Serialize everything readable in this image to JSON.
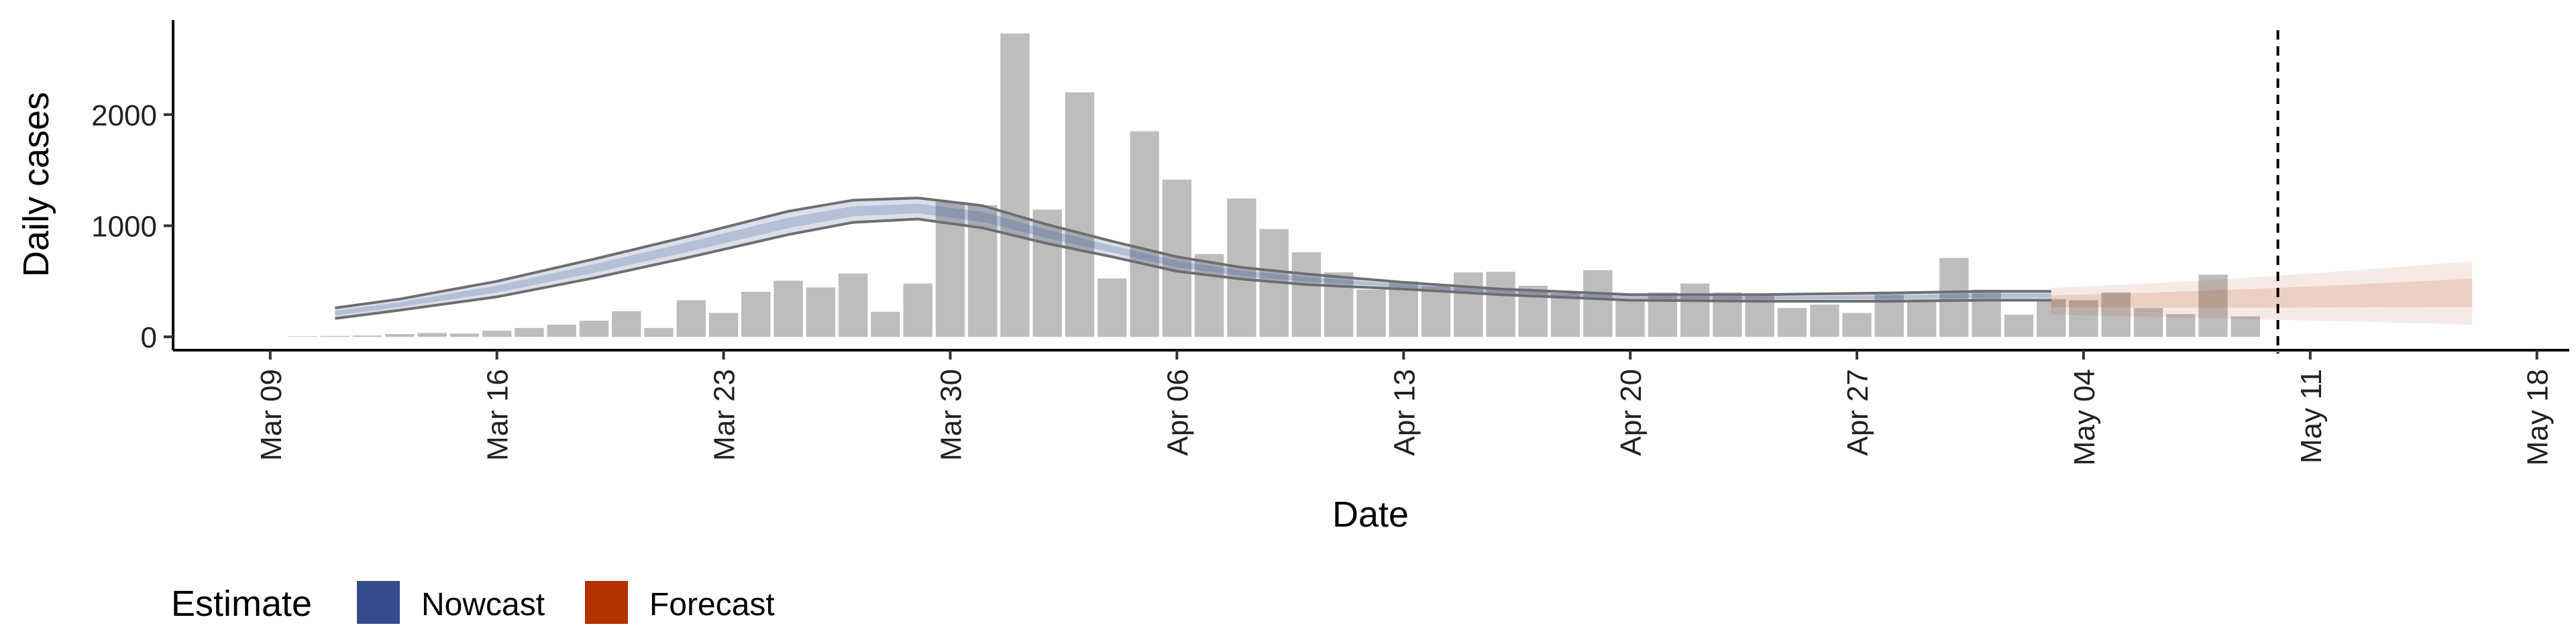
{
  "chart_data": {
    "type": "bar",
    "xlabel": "Date",
    "ylabel": "Daily cases",
    "x_tick_labels": [
      "Mar 09",
      "Mar 16",
      "Mar 23",
      "Mar 30",
      "Apr 06",
      "Apr 13",
      "Apr 20",
      "Apr 27",
      "May 04",
      "May 11",
      "May 18"
    ],
    "x_tick_dates": [
      "2020-03-09",
      "2020-03-16",
      "2020-03-23",
      "2020-03-30",
      "2020-04-06",
      "2020-04-13",
      "2020-04-20",
      "2020-04-27",
      "2020-05-04",
      "2020-05-11",
      "2020-05-18"
    ],
    "xlim": [
      "2020-03-06",
      "2020-05-19"
    ],
    "y_ticks": [
      0,
      1000,
      2000
    ],
    "ylim": [
      -120,
      2850
    ],
    "grid": false,
    "bars": {
      "color": "#bdbdbd",
      "dates": [
        "2020-03-10",
        "2020-03-11",
        "2020-03-12",
        "2020-03-13",
        "2020-03-14",
        "2020-03-15",
        "2020-03-16",
        "2020-03-17",
        "2020-03-18",
        "2020-03-19",
        "2020-03-20",
        "2020-03-21",
        "2020-03-22",
        "2020-03-23",
        "2020-03-24",
        "2020-03-25",
        "2020-03-26",
        "2020-03-27",
        "2020-03-28",
        "2020-03-29",
        "2020-03-30",
        "2020-03-31",
        "2020-04-01",
        "2020-04-02",
        "2020-04-03",
        "2020-04-04",
        "2020-04-05",
        "2020-04-06",
        "2020-04-07",
        "2020-04-08",
        "2020-04-09",
        "2020-04-10",
        "2020-04-11",
        "2020-04-12",
        "2020-04-13",
        "2020-04-14",
        "2020-04-15",
        "2020-04-16",
        "2020-04-17",
        "2020-04-18",
        "2020-04-19",
        "2020-04-20",
        "2020-04-21",
        "2020-04-22",
        "2020-04-23",
        "2020-04-24",
        "2020-04-25",
        "2020-04-26",
        "2020-04-27",
        "2020-04-28",
        "2020-04-29",
        "2020-04-30",
        "2020-05-01",
        "2020-05-02",
        "2020-05-03",
        "2020-05-04",
        "2020-05-05",
        "2020-05-06",
        "2020-05-07",
        "2020-05-08",
        "2020-05-09",
        "2020-05-10"
      ],
      "values": [
        5,
        8,
        12,
        25,
        35,
        30,
        55,
        80,
        110,
        145,
        230,
        80,
        330,
        215,
        405,
        505,
        445,
        570,
        225,
        480,
        1215,
        1185,
        2730,
        1145,
        2200,
        525,
        1850,
        1415,
        745,
        1245,
        970,
        760,
        580,
        425,
        500,
        455,
        580,
        585,
        460,
        390,
        600,
        330,
        400,
        480,
        400,
        370,
        260,
        290,
        215,
        380,
        335,
        710,
        425,
        200,
        340,
        330,
        400,
        260,
        205,
        560,
        185,
        0
      ]
    },
    "series": [
      {
        "name": "Nowcast",
        "type": "ribbon",
        "color": "#334d8c",
        "x": [
          "2020-03-11",
          "2020-03-13",
          "2020-03-16",
          "2020-03-19",
          "2020-03-22",
          "2020-03-25",
          "2020-03-27",
          "2020-03-29",
          "2020-03-31",
          "2020-04-02",
          "2020-04-04",
          "2020-04-06",
          "2020-04-08",
          "2020-04-10",
          "2020-04-13",
          "2020-04-16",
          "2020-04-20",
          "2020-04-24",
          "2020-04-28",
          "2020-05-01",
          "2020-05-03"
        ],
        "lower": [
          165,
          240,
          360,
          530,
          720,
          920,
          1030,
          1060,
          980,
          840,
          720,
          590,
          520,
          470,
          430,
          380,
          330,
          320,
          320,
          330,
          330
        ],
        "median": [
          210,
          290,
          430,
          610,
          820,
          1030,
          1130,
          1160,
          1080,
          920,
          790,
          655,
          575,
          520,
          460,
          405,
          360,
          350,
          355,
          365,
          365
        ],
        "upper": [
          260,
          340,
          500,
          700,
          910,
          1130,
          1230,
          1250,
          1180,
          1010,
          860,
          720,
          625,
          565,
          490,
          430,
          380,
          380,
          395,
          410,
          410
        ]
      },
      {
        "name": "Forecast",
        "type": "ribbon",
        "color": "#b33200",
        "x": [
          "2020-05-03",
          "2020-05-06",
          "2020-05-09",
          "2020-05-12",
          "2020-05-16"
        ],
        "lower": [
          200,
          180,
          160,
          140,
          110
        ],
        "median": [
          360,
          360,
          360,
          360,
          360
        ],
        "upper": [
          440,
          480,
          530,
          590,
          680
        ]
      }
    ],
    "reference_line": {
      "date": "2020-05-10",
      "style": "dashed"
    },
    "legend": {
      "title": "Estimate",
      "position": "bottom-left",
      "items": [
        {
          "label": "Nowcast",
          "color": "#334d8c"
        },
        {
          "label": "Forecast",
          "color": "#b33200"
        }
      ]
    }
  }
}
